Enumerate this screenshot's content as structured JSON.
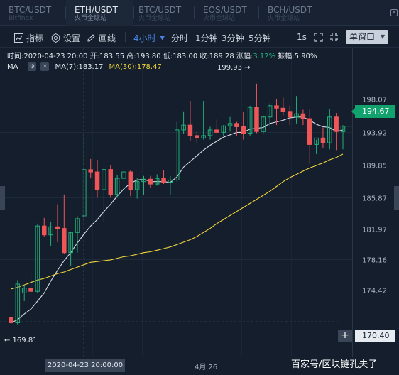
{
  "tabs": [
    {
      "pair": "BTC/USDT",
      "exchange": "Bitfinex",
      "active": false
    },
    {
      "pair": "ETH/USDT",
      "exchange": "火币全球站",
      "active": true
    },
    {
      "pair": "BTC/USDT",
      "exchange": "火币全球站",
      "active": false
    },
    {
      "pair": "EOS/USDT",
      "exchange": "火币全球站",
      "active": false
    },
    {
      "pair": "BCH/USDT",
      "exchange": "火币全球站",
      "active": false
    }
  ],
  "toolbar": {
    "indicators": "指标",
    "settings": "设置",
    "draw": "画线",
    "interval_selected": "4小时",
    "intervals": [
      "分时",
      "1分钟",
      "3分钟",
      "5分钟"
    ],
    "speed": "1s",
    "window_mode": "单窗口"
  },
  "info": {
    "time_label": "时间:",
    "time": "2020-04-23 20:00",
    "open_label": "开:",
    "open": "183.55",
    "high_label": "高:",
    "high": "193.80",
    "low_label": "低:",
    "low": "183.00",
    "close_label": "收:",
    "close": "189.28",
    "change_label": "涨幅:",
    "change": "3.12%",
    "amplitude_label": "振幅:",
    "amplitude": "5.90%"
  },
  "ma": {
    "label": "MA",
    "ma7": "MA(7):183.17",
    "ma30": "MA(30):178.47"
  },
  "price_axis": {
    "ticks": [
      "198.07",
      "193.92",
      "189.85",
      "185.87",
      "181.97",
      "178.16",
      "174.42"
    ],
    "current_price": "194.67",
    "crosshair_price": "170.40"
  },
  "markers": {
    "high": "199.93 →",
    "low": "← 169.81"
  },
  "time_axis": {
    "crosshair_date": "2020-04-23 20:00:00",
    "tick": "4月 26"
  },
  "watermark": "百家号/区块链孔夫子",
  "colors": {
    "up": "#22b07d",
    "down": "#ef5658",
    "ma7": "#d8dee8",
    "ma30": "#f0d43a",
    "accent": "#4a86e8"
  },
  "chart_data": {
    "type": "candlestick",
    "ylim": [
      168.5,
      201.5
    ],
    "candles": [
      {
        "o": 171.0,
        "h": 173.2,
        "l": 169.81,
        "c": 170.3
      },
      {
        "o": 170.3,
        "h": 175.6,
        "l": 170.0,
        "c": 175.1
      },
      {
        "o": 174.0,
        "h": 175.0,
        "l": 173.0,
        "c": 174.6
      },
      {
        "o": 174.6,
        "h": 176.5,
        "l": 173.8,
        "c": 174.2
      },
      {
        "o": 174.2,
        "h": 182.6,
        "l": 174.0,
        "c": 182.3
      },
      {
        "o": 182.3,
        "h": 183.3,
        "l": 181.0,
        "c": 181.2
      },
      {
        "o": 181.2,
        "h": 182.8,
        "l": 179.8,
        "c": 182.2
      },
      {
        "o": 182.2,
        "h": 185.0,
        "l": 180.3,
        "c": 182.0
      },
      {
        "o": 182.0,
        "h": 186.2,
        "l": 178.8,
        "c": 179.0
      },
      {
        "o": 179.0,
        "h": 181.6,
        "l": 177.3,
        "c": 181.5
      },
      {
        "o": 181.5,
        "h": 183.5,
        "l": 179.0,
        "c": 183.2
      },
      {
        "o": 183.55,
        "h": 193.8,
        "l": 183.0,
        "c": 189.28
      },
      {
        "o": 189.28,
        "h": 190.6,
        "l": 188.2,
        "c": 189.0
      },
      {
        "o": 189.0,
        "h": 190.5,
        "l": 185.8,
        "c": 186.8
      },
      {
        "o": 186.8,
        "h": 189.5,
        "l": 182.8,
        "c": 189.3
      },
      {
        "o": 189.3,
        "h": 189.8,
        "l": 185.8,
        "c": 186.2
      },
      {
        "o": 186.2,
        "h": 188.6,
        "l": 185.8,
        "c": 188.2
      },
      {
        "o": 188.2,
        "h": 189.5,
        "l": 187.6,
        "c": 189.0
      },
      {
        "o": 189.0,
        "h": 189.2,
        "l": 186.0,
        "c": 186.8
      },
      {
        "o": 186.8,
        "h": 188.2,
        "l": 185.7,
        "c": 187.8
      },
      {
        "o": 187.8,
        "h": 188.5,
        "l": 186.2,
        "c": 188.1
      },
      {
        "o": 188.1,
        "h": 188.5,
        "l": 187.0,
        "c": 187.5
      },
      {
        "o": 187.5,
        "h": 188.7,
        "l": 187.3,
        "c": 188.2
      },
      {
        "o": 188.2,
        "h": 189.2,
        "l": 187.5,
        "c": 187.7
      },
      {
        "o": 187.7,
        "h": 188.5,
        "l": 186.2,
        "c": 188.0
      },
      {
        "o": 188.0,
        "h": 195.2,
        "l": 187.8,
        "c": 194.2
      },
      {
        "o": 194.2,
        "h": 196.5,
        "l": 193.7,
        "c": 194.8
      },
      {
        "o": 194.8,
        "h": 197.8,
        "l": 192.8,
        "c": 193.5
      },
      {
        "o": 193.5,
        "h": 194.0,
        "l": 192.6,
        "c": 193.2
      },
      {
        "o": 193.2,
        "h": 197.8,
        "l": 193.0,
        "c": 193.5
      },
      {
        "o": 193.5,
        "h": 194.6,
        "l": 193.0,
        "c": 194.2
      },
      {
        "o": 194.2,
        "h": 195.5,
        "l": 193.8,
        "c": 193.9
      },
      {
        "o": 193.9,
        "h": 194.8,
        "l": 193.5,
        "c": 194.7
      },
      {
        "o": 194.7,
        "h": 195.8,
        "l": 194.0,
        "c": 195.0
      },
      {
        "o": 195.0,
        "h": 195.2,
        "l": 193.5,
        "c": 194.6
      },
      {
        "o": 194.6,
        "h": 196.4,
        "l": 193.0,
        "c": 193.8
      },
      {
        "o": 193.8,
        "h": 197.2,
        "l": 193.5,
        "c": 197.0
      },
      {
        "o": 197.0,
        "h": 199.93,
        "l": 193.8,
        "c": 194.0
      },
      {
        "o": 194.0,
        "h": 196.0,
        "l": 193.7,
        "c": 195.8
      },
      {
        "o": 195.8,
        "h": 197.5,
        "l": 194.7,
        "c": 197.2
      },
      {
        "o": 197.2,
        "h": 198.0,
        "l": 194.8,
        "c": 196.9
      },
      {
        "o": 196.9,
        "h": 198.2,
        "l": 196.0,
        "c": 196.5
      },
      {
        "o": 196.5,
        "h": 197.2,
        "l": 194.8,
        "c": 195.8
      },
      {
        "o": 195.8,
        "h": 198.4,
        "l": 195.0,
        "c": 196.2
      },
      {
        "o": 196.2,
        "h": 196.7,
        "l": 194.8,
        "c": 195.6
      },
      {
        "o": 195.6,
        "h": 196.8,
        "l": 190.0,
        "c": 192.4
      },
      {
        "o": 192.4,
        "h": 193.0,
        "l": 191.2,
        "c": 193.2
      },
      {
        "o": 193.2,
        "h": 194.5,
        "l": 192.0,
        "c": 192.6
      },
      {
        "o": 192.6,
        "h": 196.8,
        "l": 191.8,
        "c": 195.8
      },
      {
        "o": 195.8,
        "h": 196.3,
        "l": 191.7,
        "c": 194.0
      },
      {
        "o": 194.0,
        "h": 194.8,
        "l": 191.8,
        "c": 194.67
      }
    ],
    "ma7": [
      170.3,
      170.7,
      171.4,
      172.0,
      173.0,
      174.0,
      175.5,
      176.8,
      178.0,
      179.0,
      180.2,
      181.3,
      182.3,
      183.1,
      184.1,
      185.0,
      186.0,
      186.9,
      187.6,
      188.0,
      188.1,
      187.8,
      187.8,
      187.8,
      187.7,
      188.4,
      189.6,
      190.3,
      191.0,
      191.7,
      192.3,
      192.8,
      193.3,
      193.6,
      193.9,
      193.9,
      194.3,
      194.4,
      194.5,
      195.0,
      195.2,
      195.4,
      195.7,
      195.8,
      195.8,
      195.4,
      194.9,
      194.6,
      194.5,
      194.0,
      194.2
    ],
    "ma30": [
      174.5,
      174.7,
      175.0,
      175.3,
      175.6,
      175.8,
      176.1,
      176.4,
      176.6,
      176.9,
      177.2,
      177.5,
      177.8,
      177.9,
      178.0,
      178.1,
      178.3,
      178.5,
      178.6,
      178.8,
      179.0,
      179.1,
      179.3,
      179.5,
      179.7,
      180.0,
      180.3,
      180.6,
      181.0,
      181.5,
      182.0,
      182.6,
      183.1,
      183.6,
      184.1,
      184.6,
      185.1,
      185.6,
      186.1,
      186.6,
      187.2,
      187.8,
      188.3,
      188.7,
      189.1,
      189.5,
      189.8,
      190.1,
      190.5,
      190.8,
      191.2
    ],
    "crosshair_index": 11
  }
}
